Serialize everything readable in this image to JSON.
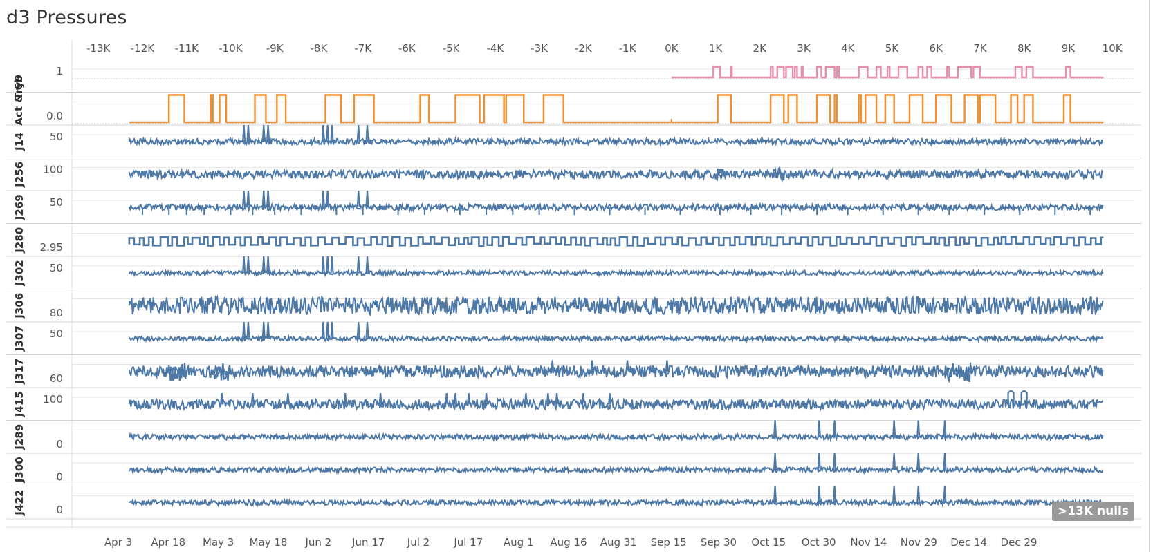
{
  "title": "d3 Pressures",
  "null_indicator": ">13K nulls",
  "colors": {
    "series": "#4e79a7",
    "act": "#f28e2b",
    "try": "#e58fab",
    "grid": "#e6e6e6",
    "axis": "#999999",
    "text": "#555555"
  },
  "chart_data": {
    "type": "line",
    "top_axis": {
      "ticks": [
        -13000,
        -12000,
        -11000,
        -10000,
        -9000,
        -8000,
        -7000,
        -6000,
        -5000,
        -4000,
        -3000,
        -2000,
        -1000,
        0,
        1000,
        2000,
        3000,
        4000,
        5000,
        6000,
        7000,
        8000,
        9000,
        10000
      ],
      "tick_labels": [
        "-13K",
        "-12K",
        "-11K",
        "-10K",
        "-9K",
        "-8K",
        "-7K",
        "-6K",
        "-5K",
        "-4K",
        "-3K",
        "-2K",
        "-1K",
        "0K",
        "1K",
        "2K",
        "3K",
        "4K",
        "5K",
        "6K",
        "7K",
        "8K",
        "9K",
        "10K"
      ],
      "range": [
        -13600,
        10500
      ]
    },
    "bottom_axis": {
      "tick_labels": [
        "Apr 3",
        "Apr 18",
        "May 3",
        "May 18",
        "Jun 2",
        "Jun 17",
        "Jul 2",
        "Jul 17",
        "Aug 1",
        "Aug 16",
        "Aug 31",
        "Sep 15",
        "Sep 30",
        "Oct 15",
        "Oct 30",
        "Nov 14",
        "Nov 29",
        "Dec 14",
        "Dec 29"
      ]
    },
    "data_x_range": [
      -12300,
      9800
    ],
    "rows": [
      {
        "name": "Try9",
        "tick": "1",
        "kind": "step",
        "color": "#e58fab",
        "x_start": 0,
        "x_end": 9800,
        "pulses": [
          [
            950,
            1100
          ],
          [
            1350,
            1370
          ],
          [
            2250,
            2300
          ],
          [
            2400,
            2550
          ],
          [
            2600,
            2750
          ],
          [
            2800,
            2850
          ],
          [
            2950,
            2980
          ],
          [
            3300,
            3400
          ],
          [
            3500,
            3700
          ],
          [
            3750,
            3800
          ],
          [
            4250,
            4450
          ],
          [
            4650,
            4750
          ],
          [
            4900,
            4950
          ],
          [
            5150,
            5350
          ],
          [
            5600,
            5700
          ],
          [
            5800,
            5900
          ],
          [
            6250,
            6300
          ],
          [
            6500,
            6800
          ],
          [
            6850,
            7000
          ],
          [
            7800,
            7950
          ],
          [
            8050,
            8200
          ],
          [
            8950,
            9050
          ]
        ]
      },
      {
        "name": "Act & 6b",
        "tick": "0.0",
        "kind": "step",
        "color": "#f28e2b",
        "x_start": -12300,
        "x_end": 9800,
        "pulses": [
          [
            -11400,
            -11050
          ],
          [
            -10450,
            -10400
          ],
          [
            -10250,
            -10100
          ],
          [
            -9450,
            -9200
          ],
          [
            -8950,
            -8750
          ],
          [
            -7850,
            -7500
          ],
          [
            -7200,
            -6750
          ],
          [
            -5700,
            -5500
          ],
          [
            -4900,
            -4350
          ],
          [
            -4250,
            -3800
          ],
          [
            -3750,
            -3350
          ],
          [
            -2900,
            -2450
          ],
          [
            1050,
            1350
          ],
          [
            2250,
            2550
          ],
          [
            2650,
            2850
          ],
          [
            3300,
            3600
          ],
          [
            3700,
            3750
          ],
          [
            4250,
            4300
          ],
          [
            4400,
            4650
          ],
          [
            4850,
            5050
          ],
          [
            5400,
            5700
          ],
          [
            6000,
            6350
          ],
          [
            6650,
            6950
          ],
          [
            7000,
            7350
          ],
          [
            7700,
            7850
          ],
          [
            8000,
            8200
          ],
          [
            8900,
            9050
          ]
        ],
        "segment_break": 0
      },
      {
        "name": "J14",
        "tick": "50",
        "kind": "noise",
        "color": "#4e79a7",
        "amp": 0.55,
        "spikes": [
          -9700,
          -9600,
          -9250,
          -9150,
          -7900,
          -7800,
          -7700,
          -7100,
          -6900
        ]
      },
      {
        "name": "J256",
        "tick": "100",
        "kind": "noise",
        "color": "#4e79a7",
        "amp": 0.75,
        "spikes": [],
        "bumps": [
          [
            1000,
            1300
          ],
          [
            2300,
            2600
          ]
        ]
      },
      {
        "name": "J269",
        "tick": "50",
        "kind": "noise",
        "color": "#4e79a7",
        "amp": 0.55,
        "spikes": [
          -9700,
          -9600,
          -9250,
          -9150,
          -7900,
          -7800,
          -7100,
          -6900
        ],
        "dips": [
          -12000,
          -11400,
          -11000,
          -10600,
          -10000,
          -9500,
          -9000,
          -8400,
          -7600,
          -7000,
          -6200,
          -5600,
          -4800,
          -4200,
          -3600,
          -3000,
          -2200,
          -1400,
          -600,
          200,
          1100,
          1800,
          2500,
          3300,
          4000,
          4800,
          5600,
          6300,
          7100,
          7900,
          8700,
          9500
        ]
      },
      {
        "name": "J280",
        "tick": "2.95",
        "kind": "square",
        "color": "#4e79a7"
      },
      {
        "name": "J302",
        "tick": "50",
        "kind": "noise",
        "color": "#4e79a7",
        "amp": 0.4,
        "spikes": [
          -9700,
          -9600,
          -9250,
          -9150,
          -7900,
          -7800,
          -7700,
          -7100,
          -6900
        ]
      },
      {
        "name": "J306",
        "tick": "80",
        "kind": "noise",
        "color": "#4e79a7",
        "amp": 1.6,
        "spikes": []
      },
      {
        "name": "J307",
        "tick": "50",
        "kind": "noise",
        "color": "#4e79a7",
        "amp": 0.4,
        "spikes": [
          -9700,
          -9600,
          -9250,
          -9150,
          -7900,
          -7800,
          -7700,
          -7100,
          -6900
        ]
      },
      {
        "name": "J317",
        "tick": "60",
        "kind": "noise",
        "color": "#4e79a7",
        "amp": 1.05,
        "spikes": [
          -2700,
          -1800,
          -1000,
          -100
        ],
        "bumps": [
          [
            -11400,
            -11000
          ],
          [
            -10400,
            -10000
          ],
          [
            6200,
            6800
          ]
        ]
      },
      {
        "name": "J415",
        "tick": "100",
        "kind": "noise",
        "color": "#4e79a7",
        "amp": 0.9,
        "spikes": [
          -10200,
          -9500,
          -8700,
          -7400,
          -6600,
          -5100,
          -4900,
          -4600,
          -4200,
          -3300,
          -2800,
          -2600,
          -2000,
          -1400
        ],
        "tall": [
          7700,
          8000
        ]
      },
      {
        "name": "J289",
        "tick": "0",
        "kind": "noise",
        "color": "#4e79a7",
        "amp": 0.5,
        "spikes": [
          2350,
          3350,
          3700,
          5050,
          5600,
          6200
        ]
      },
      {
        "name": "J300",
        "tick": "0",
        "kind": "noise",
        "color": "#4e79a7",
        "amp": 0.45,
        "spikes": [
          2350,
          3350,
          3700,
          5050,
          5600,
          6200
        ]
      },
      {
        "name": "J422",
        "tick": "0",
        "kind": "noise",
        "color": "#4e79a7",
        "amp": 0.45,
        "spikes": [
          2350,
          3350,
          3700,
          5050,
          5600,
          6200
        ]
      }
    ]
  }
}
